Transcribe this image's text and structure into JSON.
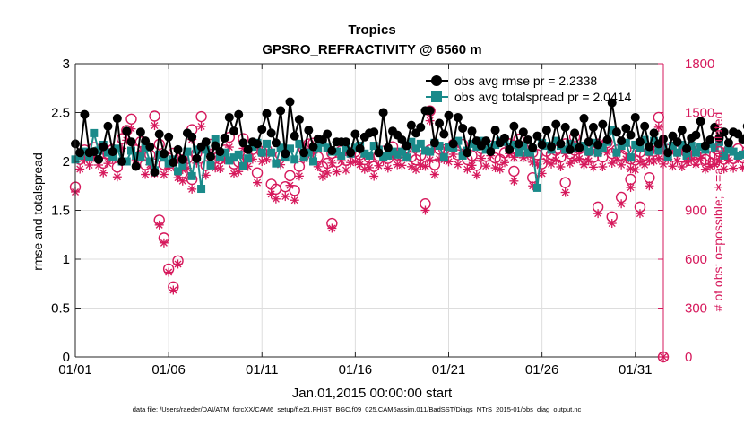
{
  "chart_data": {
    "type": "line",
    "title": "Tropics",
    "subtitle": "GPSRO_REFRACTIVITY @ 6560 m",
    "xlabel": "Jan.01,2015 00:00:00 start",
    "ylabel_left": "rmse and totalspread",
    "ylabel_right": "# of obs: o=possible; ∗=assimilated",
    "footer": "data file: /Users/raeder/DAI/ATM_forcXX/CAM6_setup/f.e21.FHIST_BGC.f09_025.CAM6assim.011/BadSST/Diags_NTrS_2015-01/obs_diag_output.nc",
    "xlim": [
      0,
      31.5
    ],
    "ylim_left": [
      0,
      3
    ],
    "ylim_right": [
      0,
      1800
    ],
    "x_ticks": [
      0,
      5,
      10,
      15,
      20,
      25,
      30
    ],
    "x_tick_labels": [
      "01/01",
      "01/06",
      "01/11",
      "01/16",
      "01/21",
      "01/26",
      "01/31"
    ],
    "y_left_ticks": [
      0,
      0.5,
      1,
      1.5,
      2,
      2.5,
      3
    ],
    "y_left_tick_labels": [
      "0",
      "0.5",
      "1",
      "1.5",
      "2",
      "2.5",
      "3"
    ],
    "y_right_ticks": [
      0,
      300,
      600,
      900,
      1200,
      1500,
      1800
    ],
    "y_right_tick_labels": [
      "0",
      "300",
      "600",
      "900",
      "1200",
      "1500",
      "1800"
    ],
    "grid": true,
    "legend_position": "top-right",
    "colors": {
      "rmse": "#000000",
      "spread": "#1a8a8a",
      "obs": "#d6195c",
      "axis": "#262626",
      "grid": "#dddddd"
    },
    "series": [
      {
        "name": "obs avg rmse pr = 2.2338",
        "color": "#000000",
        "marker": "filled-circle",
        "step": 0.25,
        "values": [
          2.18,
          2.09,
          2.48,
          2.09,
          2.1,
          2.02,
          2.15,
          2.36,
          2.1,
          2.44,
          2.0,
          2.31,
          2.2,
          1.95,
          2.3,
          2.21,
          2.15,
          1.89,
          2.28,
          2.08,
          2.25,
          1.99,
          2.12,
          2.02,
          2.29,
          2.25,
          2.03,
          2.15,
          2.2,
          2.05,
          2.16,
          2.1,
          2.24,
          2.45,
          2.31,
          2.48,
          2.19,
          2.12,
          2.2,
          2.18,
          2.33,
          2.49,
          2.29,
          2.19,
          2.52,
          2.08,
          2.61,
          2.26,
          2.43,
          2.09,
          2.32,
          2.15,
          2.23,
          2.22,
          2.28,
          2.11,
          2.2,
          2.2,
          2.2,
          2.09,
          2.28,
          2.13,
          2.25,
          2.29,
          2.3,
          2.09,
          2.5,
          2.14,
          2.31,
          2.27,
          2.22,
          2.16,
          2.37,
          2.29,
          2.35,
          2.52,
          2.52,
          2.19,
          2.39,
          2.28,
          2.47,
          2.18,
          2.45,
          2.34,
          2.09,
          2.31,
          2.21,
          2.16,
          2.21,
          2.1,
          2.32,
          2.19,
          2.24,
          2.12,
          2.36,
          2.18,
          2.3,
          2.22,
          2.14,
          2.26,
          2.17,
          2.32,
          2.15,
          2.38,
          2.18,
          2.35,
          2.12,
          2.29,
          2.14,
          2.44,
          2.2,
          2.35,
          2.17,
          2.38,
          2.22,
          2.6,
          2.3,
          2.21,
          2.34,
          2.27,
          2.45,
          2.2,
          2.36,
          2.15,
          2.29,
          2.18,
          2.23,
          2.09,
          2.26,
          2.2,
          2.32,
          2.13,
          2.24,
          2.27,
          2.41,
          2.16,
          2.22,
          2.35,
          2.24,
          2.3,
          2.19,
          2.3,
          2.28,
          2.22,
          2.36,
          2.25,
          2.33,
          2.18,
          2.4,
          2.45,
          2.21,
          2.43,
          2.28,
          2.38,
          2.12,
          2.44,
          2.46,
          2.2,
          2.31,
          2.23,
          2.19,
          2.32,
          2.25,
          2.11,
          2.22,
          2.15,
          2.08,
          2.43,
          2.29,
          2.33,
          2.24,
          2.26,
          2.19,
          2.38,
          2.28,
          2.42,
          2.29,
          2.45,
          2.3,
          2.47,
          2.26,
          2.31,
          2.05,
          2.35,
          2.28,
          2.21,
          2.3,
          2.32,
          2.28,
          2.15,
          2.25,
          2.4,
          2.25,
          2.43,
          2.0,
          2.32
        ]
      },
      {
        "name": "obs avg totalspread pr = 2.0414",
        "color": "#1a8a8a",
        "marker": "filled-square",
        "step": 0.25,
        "values": [
          2.02,
          2.06,
          2.1,
          2.05,
          2.29,
          2.11,
          2.17,
          2.09,
          2.05,
          2.13,
          2.0,
          2.0,
          2.11,
          2.06,
          2.05,
          2.14,
          2.0,
          1.91,
          2.07,
          2.04,
          1.98,
          2.02,
          1.9,
          1.96,
          2.1,
          1.85,
          2.12,
          1.72,
          2.12,
          1.96,
          2.23,
          2.05,
          2.09,
          2.01,
          2.04,
          2.07,
          1.95,
          2.03,
          2.15,
          2.19,
          2.09,
          2.18,
          2.09,
          1.98,
          2.14,
          2.05,
          2.13,
          2.02,
          2.18,
          2.04,
          2.09,
          2.0,
          2.14,
          2.19,
          2.14,
          2.1,
          2.1,
          2.06,
          2.14,
          2.08,
          2.14,
          2.16,
          2.08,
          2.06,
          2.16,
          2.12,
          2.05,
          2.06,
          2.1,
          2.07,
          2.1,
          2.04,
          2.2,
          2.13,
          2.18,
          2.11,
          2.1,
          2.19,
          2.16,
          2.04,
          2.15,
          2.14,
          2.21,
          2.06,
          2.11,
          2.18,
          2.15,
          2.21,
          2.12,
          2.14,
          2.17,
          2.21,
          2.2,
          2.15,
          2.17,
          2.09,
          2.16,
          2.09,
          2.13,
          1.73,
          2.19,
          2.16,
          2.12,
          2.21,
          2.16,
          2.12,
          2.18,
          2.14,
          2.15,
          2.16,
          2.1,
          2.19,
          2.09,
          2.14,
          2.2,
          2.32,
          2.09,
          2.16,
          2.19,
          2.04,
          2.17,
          2.14,
          2.22,
          2.1,
          2.21,
          2.11,
          2.14,
          2.05,
          2.16,
          2.09,
          2.17,
          2.06,
          2.16,
          2.09,
          2.15,
          2.12,
          2.18,
          2.14,
          2.2,
          2.06,
          2.12,
          2.1,
          2.06,
          2.07,
          2.08,
          2.1,
          2.17,
          2.04,
          2.16,
          2.12,
          2.2,
          2.13,
          2.21,
          1.98,
          2.2,
          2.18,
          2.09,
          2.16,
          2.11,
          2.23,
          2.12,
          2.19,
          2.21,
          2.14,
          2.16,
          2.13,
          2.22,
          2.07,
          2.16,
          2.12,
          2.22,
          2.08,
          2.15,
          2.24,
          2.11,
          2.14,
          2.17,
          2.1,
          2.23,
          2.12,
          2.17,
          2.25,
          2.14,
          2.1,
          2.08,
          2.16,
          2.2,
          2.22,
          2.14,
          2.12,
          2.23,
          2.18,
          2.19,
          2.15,
          2.21,
          2.12,
          2.19,
          2.1
        ]
      },
      {
        "name": "obs possible",
        "axis": "right",
        "color": "#d6195c",
        "marker": "open-circle",
        "step": 0.25,
        "values": [
          1043,
          1213,
          1270,
          1238,
          1285,
          1238,
          1190,
          1248,
          1273,
          1165,
          1340,
          1390,
          1460,
          1270,
          1320,
          1180,
          1240,
          1185,
          1305,
          1180,
          1220,
          1250,
          1160,
          1210,
          1218,
          1395,
          1250,
          1475,
          1175,
          1305,
          1220,
          1216,
          1270,
          1348,
          1185,
          1198,
          1340,
          1230,
          1274,
          1130,
          1260,
          1272,
          1060,
          1030,
          1240,
          1045,
          1113,
          1022,
          1170,
          1275,
          1307,
          1312,
          1228,
          1167,
          1189,
          1250,
          1197,
          1265,
          1207,
          1253,
          1259,
          1241,
          1212,
          1222,
          1169,
          1234,
          1263,
          1219,
          1290,
          1240,
          1236,
          1285,
          1228,
          1210,
          1237,
          1230,
          1270,
          1180,
          1275,
          1271,
          1258,
          1304,
          1241,
          1304,
          1212,
          1236,
          1176,
          1279,
          1232,
          1295,
          1221,
          1212,
          1253,
          1308,
          1286,
          1337,
          1283,
          1296,
          1255,
          1242,
          1186,
          1262,
          1244,
          1268,
          1227,
          1308,
          1248,
          1269,
          1277,
          1242,
          1264,
          1225,
          1306,
          1227,
          1316,
          1249,
          1270,
          1239,
          1275,
          1215,
          1209,
          1257,
          1239,
          1264,
          1262,
          1277,
          1244,
          1273,
          1231,
          1262,
          1227,
          1255,
          1270,
          1242,
          1279,
          1212,
          1230,
          1241,
          1261,
          1214,
          1269,
          1218,
          1277,
          1223,
          1265,
          1242,
          1270,
          1195,
          1258,
          1248,
          1281,
          1243,
          1271,
          1236,
          1262,
          1235,
          1227,
          1274,
          1253,
          1266,
          1247,
          1276,
          1224,
          1255,
          1250,
          1238,
          1272,
          1226,
          1265,
          1211,
          1247,
          1233,
          1279,
          1246,
          1258,
          1233,
          1266,
          1249,
          1276,
          1237,
          1249,
          1228,
          1260,
          1267,
          1244,
          1273,
          1251,
          1236,
          1261,
          1263,
          1238,
          1254,
          1271,
          1245,
          1269,
          1259,
          1231,
          1268,
          1204,
          0
        ],
        "outliers": [
          [
            4.25,
            1478
          ],
          [
            4.5,
            840
          ],
          [
            4.75,
            730
          ],
          [
            5.0,
            540
          ],
          [
            5.25,
            430
          ],
          [
            5.5,
            590
          ],
          [
            5.75,
            1130
          ],
          [
            6.25,
            1090
          ],
          [
            13.75,
            820
          ],
          [
            18.75,
            940
          ],
          [
            19.0,
            1510
          ],
          [
            23.5,
            1140
          ],
          [
            24.5,
            1100
          ],
          [
            26.25,
            1070
          ],
          [
            26.75,
            1350
          ],
          [
            27.25,
            1230
          ],
          [
            28.0,
            920
          ],
          [
            28.75,
            860
          ],
          [
            29.25,
            980
          ],
          [
            29.75,
            1090
          ],
          [
            30.25,
            920
          ],
          [
            30.75,
            1100
          ],
          [
            31.25,
            1470
          ],
          [
            31.5,
            0
          ]
        ]
      },
      {
        "name": "obs assimilated",
        "axis": "right",
        "color": "#d6195c",
        "marker": "asterisk",
        "step": 0.25,
        "values": [
          1013,
          1153,
          1210,
          1178,
          1225,
          1178,
          1130,
          1188,
          1213,
          1105,
          1280,
          1330,
          1400,
          1210,
          1260,
          1120,
          1180,
          1125,
          1245,
          1120,
          1160,
          1190,
          1100,
          1150,
          1158,
          1335,
          1190,
          1415,
          1115,
          1245,
          1160,
          1156,
          1210,
          1288,
          1125,
          1138,
          1280,
          1170,
          1214,
          1070,
          1200,
          1212,
          1000,
          970,
          1180,
          985,
          1053,
          962,
          1110,
          1215,
          1247,
          1252,
          1168,
          1107,
          1129,
          1190,
          1137,
          1205,
          1147,
          1193,
          1199,
          1181,
          1152,
          1162,
          1109,
          1174,
          1203,
          1159,
          1230,
          1180,
          1176,
          1225,
          1168,
          1150,
          1177,
          1170,
          1210,
          1120,
          1215,
          1211,
          1198,
          1244,
          1181,
          1244,
          1152,
          1176,
          1116,
          1219,
          1172,
          1235,
          1161,
          1152,
          1193,
          1248,
          1226,
          1277,
          1223,
          1236,
          1195,
          1182,
          1126,
          1202,
          1184,
          1208,
          1167,
          1248,
          1188,
          1209,
          1217,
          1182,
          1204,
          1165,
          1246,
          1167,
          1256,
          1189,
          1210,
          1179,
          1215,
          1155,
          1149,
          1197,
          1179,
          1204,
          1202,
          1217,
          1184,
          1213,
          1171,
          1202,
          1167,
          1195,
          1210,
          1182,
          1219,
          1152,
          1170,
          1181,
          1201,
          1154,
          1209,
          1158,
          1217,
          1163,
          1205,
          1182,
          1210,
          1135,
          1198,
          1188,
          1221,
          1183,
          1211,
          1176,
          1202,
          1175,
          1167,
          1214,
          1193,
          1206,
          1187,
          1216,
          1164,
          1195,
          1190,
          1178,
          1212,
          1166,
          1205,
          1151,
          1187,
          1173,
          1219,
          1186,
          1198,
          1173,
          1206,
          1189,
          1216,
          1177,
          1189,
          1168,
          1200,
          1207,
          1184,
          1213,
          1191,
          1176,
          1201,
          1203,
          1178,
          1194,
          1211,
          1185,
          1209,
          1199,
          1171,
          1208,
          1144,
          0
        ],
        "outliers": [
          [
            4.25,
            1420
          ],
          [
            4.5,
            810
          ],
          [
            4.75,
            700
          ],
          [
            5.0,
            520
          ],
          [
            5.25,
            410
          ],
          [
            5.5,
            570
          ],
          [
            5.75,
            1080
          ],
          [
            6.25,
            1030
          ],
          [
            13.75,
            790
          ],
          [
            18.75,
            900
          ],
          [
            19.0,
            1450
          ],
          [
            23.5,
            1080
          ],
          [
            24.5,
            1050
          ],
          [
            26.25,
            1010
          ],
          [
            26.75,
            1300
          ],
          [
            27.25,
            1180
          ],
          [
            28.0,
            880
          ],
          [
            28.75,
            820
          ],
          [
            29.25,
            940
          ],
          [
            29.75,
            1040
          ],
          [
            30.25,
            880
          ],
          [
            30.75,
            1050
          ],
          [
            31.25,
            1410
          ],
          [
            31.5,
            0
          ]
        ]
      }
    ]
  }
}
